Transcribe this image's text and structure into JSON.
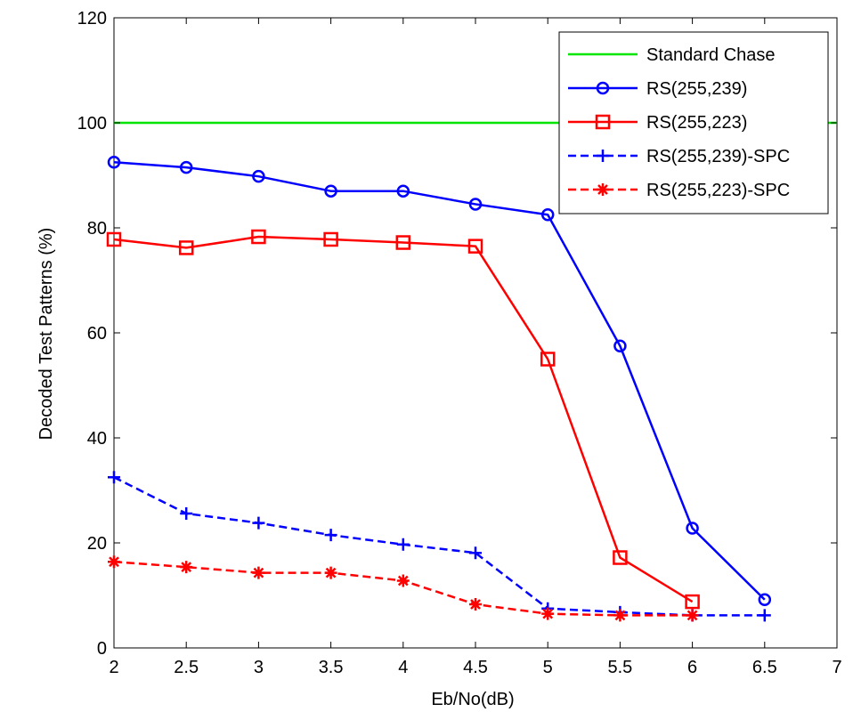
{
  "chart_data": {
    "type": "line",
    "xlabel": "Eb/No(dB)",
    "ylabel": "Decoded Test Patterns (%)",
    "xlim": [
      2,
      7
    ],
    "ylim": [
      0,
      120
    ],
    "xticks": [
      "2",
      "2.5",
      "3",
      "3.5",
      "4",
      "4.5",
      "5",
      "5.5",
      "6",
      "6.5",
      "7"
    ],
    "yticks": [
      "0",
      "20",
      "40",
      "60",
      "80",
      "100",
      "120"
    ],
    "grid": false,
    "legend_position": "top-right",
    "series": [
      {
        "name": "Standard Chase",
        "color": "#00e600",
        "dash": "solid",
        "marker": "none",
        "x": [
          2,
          7
        ],
        "y": [
          100,
          100
        ]
      },
      {
        "name": "RS(255,239)",
        "color": "#0000ff",
        "dash": "solid",
        "marker": "circle",
        "x": [
          2,
          2.5,
          3,
          3.5,
          4,
          4.5,
          5,
          5.5,
          6,
          6.5
        ],
        "y": [
          92.5,
          91.5,
          89.8,
          87,
          87,
          84.5,
          82.5,
          57.5,
          22.8,
          9.2
        ]
      },
      {
        "name": "RS(255,223)",
        "color": "#ff0000",
        "dash": "solid",
        "marker": "square",
        "x": [
          2,
          2.5,
          3,
          3.5,
          4,
          4.5,
          5,
          5.5,
          6
        ],
        "y": [
          77.8,
          76.2,
          78.3,
          77.8,
          77.2,
          76.5,
          55,
          17.2,
          8.8
        ]
      },
      {
        "name": "RS(255,239)-SPC",
        "color": "#0000ff",
        "dash": "dashed",
        "marker": "plus",
        "x": [
          2,
          2.5,
          3,
          3.5,
          4,
          4.5,
          5,
          5.5,
          6,
          6.5
        ],
        "y": [
          32.5,
          25.6,
          23.8,
          21.5,
          19.7,
          18.1,
          7.5,
          6.8,
          6.2,
          6.2
        ]
      },
      {
        "name": "RS(255,223)-SPC",
        "color": "#ff0000",
        "dash": "dashed",
        "marker": "star",
        "x": [
          2,
          2.5,
          3,
          3.5,
          4,
          4.5,
          5,
          5.5,
          6
        ],
        "y": [
          16.4,
          15.4,
          14.3,
          14.3,
          12.8,
          8.3,
          6.5,
          6.2,
          6.2
        ]
      }
    ]
  }
}
